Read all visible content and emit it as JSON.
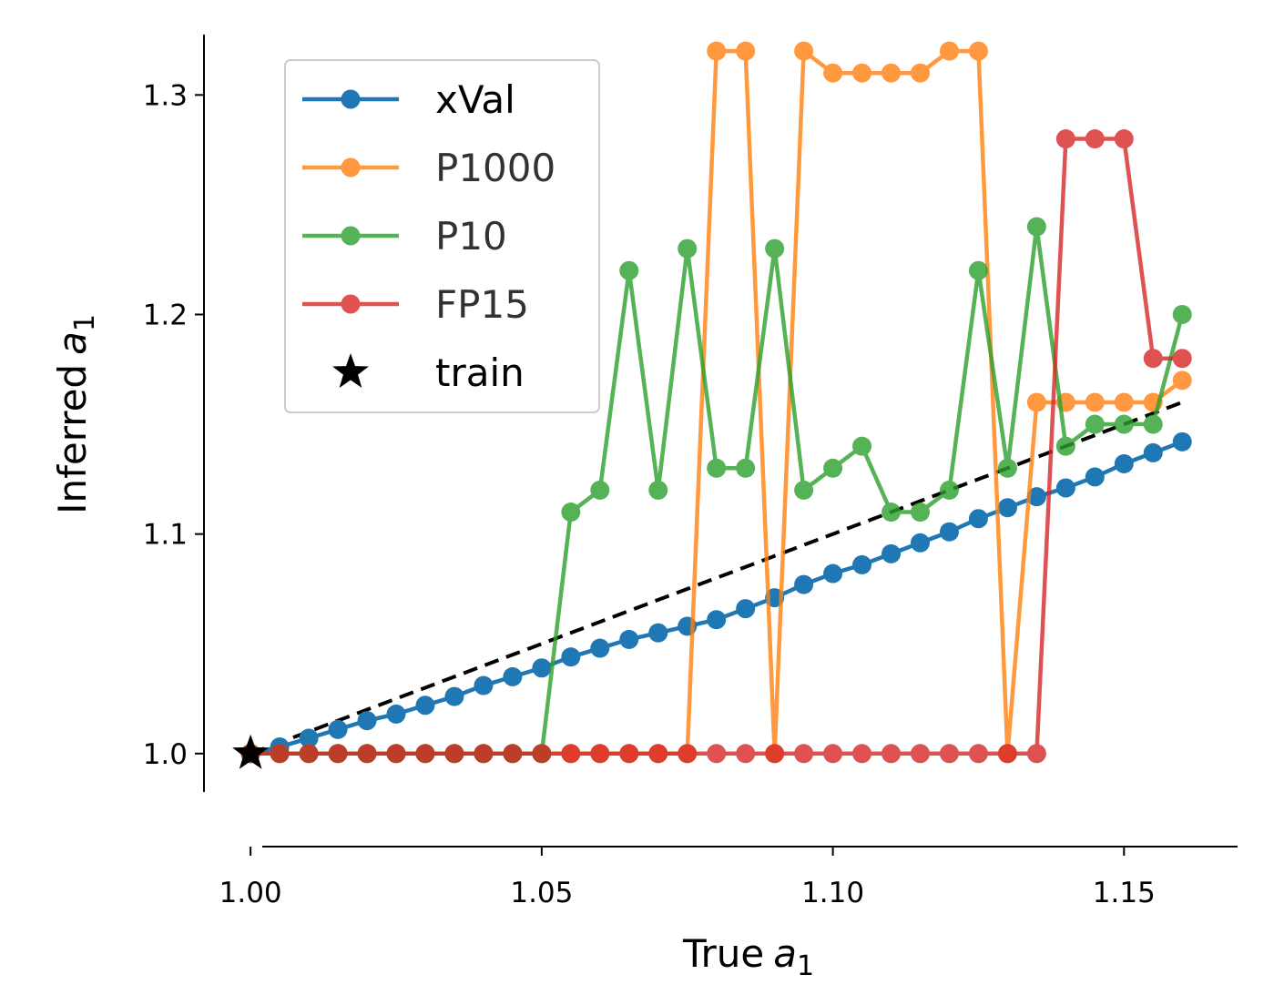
{
  "chart_data": {
    "type": "line",
    "xlabel": "True a1",
    "ylabel": "Inferred a1",
    "xlabel_parts": {
      "prefix": "True",
      "var": "a",
      "sub": "1"
    },
    "ylabel_parts": {
      "prefix": "Inferred",
      "var": "a",
      "sub": "1"
    },
    "xlim": [
      0.992,
      1.1695
    ],
    "ylim": [
      0.9825,
      1.3275
    ],
    "x_ticks": [
      1.0,
      1.05,
      1.1,
      1.15
    ],
    "x_tick_labels": [
      "1.00",
      "1.05",
      "1.10",
      "1.15"
    ],
    "y_ticks": [
      1.0,
      1.1,
      1.2,
      1.3
    ],
    "y_tick_labels": [
      "1.0",
      "1.1",
      "1.2",
      "1.3"
    ],
    "grid": false,
    "legend_position": "upper-left",
    "x": [
      1.0,
      1.005,
      1.01,
      1.015,
      1.02,
      1.025,
      1.03,
      1.035,
      1.04,
      1.045,
      1.05,
      1.055,
      1.06,
      1.065,
      1.07,
      1.075,
      1.08,
      1.085,
      1.09,
      1.095,
      1.1,
      1.105,
      1.11,
      1.115,
      1.12,
      1.125,
      1.13,
      1.135,
      1.14,
      1.145,
      1.15,
      1.155,
      1.16
    ],
    "series": [
      {
        "name": "xVal",
        "color": "#1f77b4",
        "values": [
          1.0,
          1.003,
          1.007,
          1.011,
          1.015,
          1.018,
          1.022,
          1.026,
          1.031,
          1.035,
          1.039,
          1.044,
          1.048,
          1.052,
          1.055,
          1.058,
          1.061,
          1.066,
          1.071,
          1.077,
          1.082,
          1.086,
          1.091,
          1.096,
          1.101,
          1.107,
          1.112,
          1.117,
          1.121,
          1.126,
          1.132,
          1.137,
          1.142
        ]
      },
      {
        "name": "P1000",
        "color": "#ff7f0e",
        "values": [
          1.0,
          1.0,
          1.0,
          1.0,
          1.0,
          1.0,
          1.0,
          1.0,
          1.0,
          1.0,
          1.0,
          1.0,
          1.0,
          1.0,
          1.0,
          1.0,
          1.32,
          1.32,
          1.0,
          1.32,
          1.31,
          1.31,
          1.31,
          1.31,
          1.32,
          1.32,
          1.0,
          1.16,
          1.16,
          1.16,
          1.16,
          1.16,
          1.17
        ]
      },
      {
        "name": "P10",
        "color": "#2ca02c",
        "values": [
          1.0,
          1.0,
          1.0,
          1.0,
          1.0,
          1.0,
          1.0,
          1.0,
          1.0,
          1.0,
          1.0,
          1.11,
          1.12,
          1.22,
          1.12,
          1.23,
          1.13,
          1.13,
          1.23,
          1.12,
          1.13,
          1.14,
          1.11,
          1.11,
          1.12,
          1.22,
          1.13,
          1.24,
          1.14,
          1.15,
          1.15,
          1.15,
          1.2
        ]
      },
      {
        "name": "FP15",
        "color": "#d62728",
        "values": [
          1.0,
          1.0,
          1.0,
          1.0,
          1.0,
          1.0,
          1.0,
          1.0,
          1.0,
          1.0,
          1.0,
          1.0,
          1.0,
          1.0,
          1.0,
          1.0,
          1.0,
          1.0,
          1.0,
          1.0,
          1.0,
          1.0,
          1.0,
          1.0,
          1.0,
          1.0,
          1.0,
          1.0,
          1.28,
          1.28,
          1.28,
          1.18,
          1.18
        ]
      }
    ],
    "reference_line": {
      "from": [
        1.0,
        1.0
      ],
      "to": [
        1.16,
        1.16
      ],
      "style": "dashed",
      "color": "#000000"
    },
    "train_point": {
      "name": "train",
      "x": 1.0,
      "y": 1.0,
      "marker": "star",
      "color": "#000000"
    }
  }
}
